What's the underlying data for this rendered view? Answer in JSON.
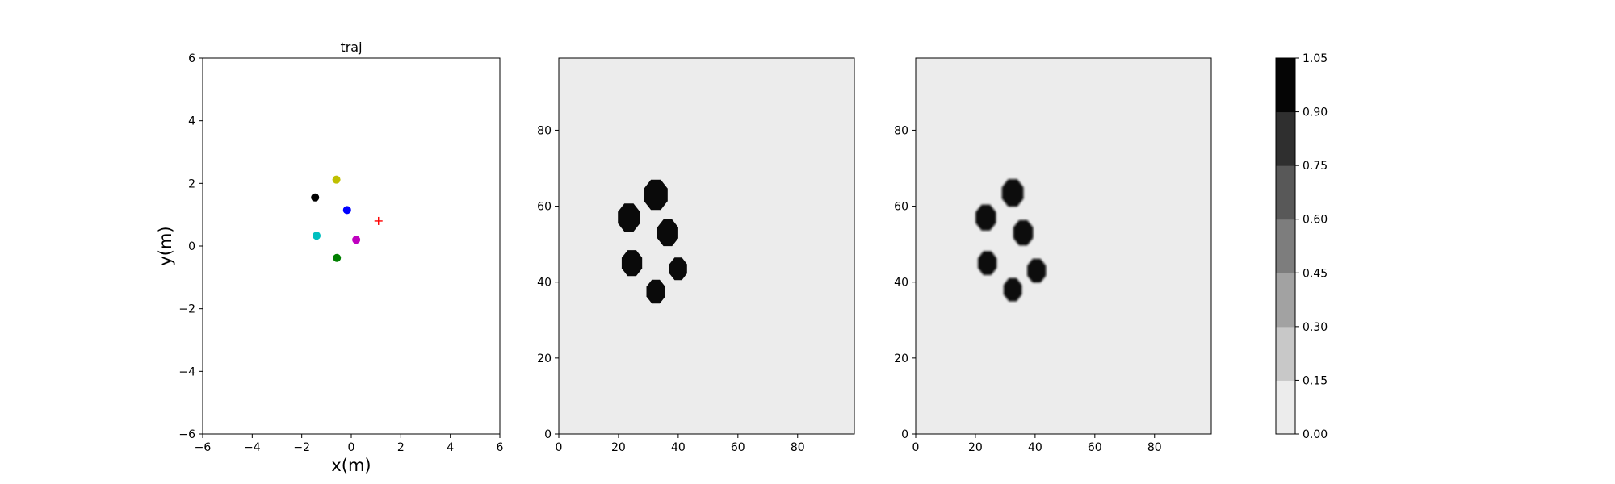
{
  "chart_data": [
    {
      "type": "scatter",
      "title": "traj",
      "xlabel": "x(m)",
      "ylabel": "y(m)",
      "xlim": [
        -6,
        6
      ],
      "ylim": [
        -6,
        6
      ],
      "xticks": [
        -6,
        -4,
        -2,
        0,
        2,
        4,
        6
      ],
      "yticks": [
        -6,
        -4,
        -2,
        0,
        2,
        4,
        6
      ],
      "grid": false,
      "points": [
        {
          "x": -0.6,
          "y": 2.12,
          "color": "#bfbf00",
          "marker": "circle"
        },
        {
          "x": -1.46,
          "y": 1.55,
          "color": "#000000",
          "marker": "circle"
        },
        {
          "x": -0.17,
          "y": 1.15,
          "color": "#0000ff",
          "marker": "circle"
        },
        {
          "x": -1.4,
          "y": 0.33,
          "color": "#00bfbf",
          "marker": "circle"
        },
        {
          "x": 0.2,
          "y": 0.2,
          "color": "#bf00bf",
          "marker": "circle"
        },
        {
          "x": -0.58,
          "y": -0.38,
          "color": "#008000",
          "marker": "circle"
        },
        {
          "x": 1.1,
          "y": 0.8,
          "color": "#ff0000",
          "marker": "plus"
        }
      ]
    },
    {
      "type": "heatmap",
      "xlim": [
        0,
        99
      ],
      "ylim": [
        0,
        99
      ],
      "xticks": [
        0,
        20,
        40,
        60,
        80
      ],
      "yticks": [
        0,
        20,
        40,
        60,
        80
      ],
      "background_value": 0.03,
      "blobs": [
        {
          "x": 32.5,
          "y": 63,
          "r": 4.3,
          "value": 1.0
        },
        {
          "x": 23.5,
          "y": 57,
          "r": 4.0,
          "value": 1.0
        },
        {
          "x": 36.5,
          "y": 53,
          "r": 3.8,
          "value": 1.0
        },
        {
          "x": 24.5,
          "y": 45,
          "r": 3.7,
          "value": 1.0
        },
        {
          "x": 40,
          "y": 43.5,
          "r": 3.2,
          "value": 1.0
        },
        {
          "x": 32.5,
          "y": 37.5,
          "r": 3.4,
          "value": 1.0
        }
      ]
    },
    {
      "type": "heatmap",
      "xlim": [
        0,
        99
      ],
      "ylim": [
        0,
        99
      ],
      "xticks": [
        0,
        20,
        40,
        60,
        80
      ],
      "yticks": [
        0,
        20,
        40,
        60,
        80
      ],
      "background_value": 0.03,
      "blobs": [
        {
          "x": 32.5,
          "y": 63.5,
          "r": 3.9,
          "value": 1.0
        },
        {
          "x": 23.5,
          "y": 57,
          "r": 3.7,
          "value": 1.0
        },
        {
          "x": 36,
          "y": 53,
          "r": 3.6,
          "value": 1.0
        },
        {
          "x": 24,
          "y": 45,
          "r": 3.4,
          "value": 1.0
        },
        {
          "x": 40.5,
          "y": 43,
          "r": 3.4,
          "value": 1.0
        },
        {
          "x": 32.5,
          "y": 38,
          "r": 3.3,
          "value": 1.0
        }
      ]
    }
  ],
  "colorbar": {
    "ticks": [
      "0.00",
      "0.15",
      "0.30",
      "0.45",
      "0.60",
      "0.75",
      "0.90",
      "1.05"
    ],
    "levels": [
      "#ececec",
      "#c8c8c8",
      "#a2a2a2",
      "#7d7d7d",
      "#585858",
      "#2f2f2f",
      "#050505"
    ]
  }
}
